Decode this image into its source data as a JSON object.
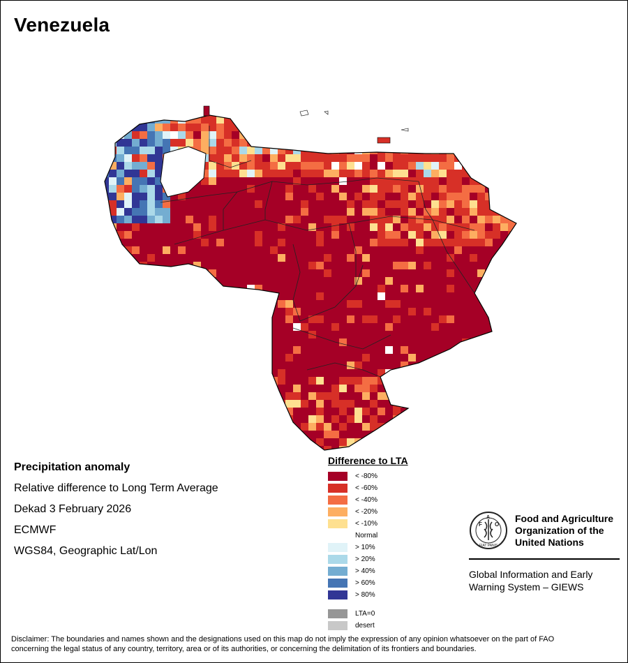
{
  "title": "Venezuela",
  "info": {
    "heading": "Precipitation anomaly",
    "line1": "Relative difference to Long Term Average",
    "line2": "Dekad 3 February 2026",
    "line3": "ECMWF",
    "line4": "WGS84, Geographic Lat/Lon"
  },
  "legend": {
    "title": "Difference to LTA",
    "items": [
      {
        "label": "< -80%",
        "color": "#a50026"
      },
      {
        "label": "< -60%",
        "color": "#d73027"
      },
      {
        "label": "< -40%",
        "color": "#f46d43"
      },
      {
        "label": "< -20%",
        "color": "#fdae61"
      },
      {
        "label": "< -10%",
        "color": "#fee090"
      },
      {
        "label": "Normal",
        "color": "#ffffff"
      },
      {
        "label": "> 10%",
        "color": "#e0f3f8"
      },
      {
        "label": "> 20%",
        "color": "#abd9e9"
      },
      {
        "label": "> 40%",
        "color": "#74add1"
      },
      {
        "label": "> 60%",
        "color": "#4575b4"
      },
      {
        "label": "> 80%",
        "color": "#313695"
      }
    ],
    "extra": [
      {
        "label": "LTA=0",
        "color": "#969696"
      },
      {
        "label": "desert",
        "color": "#c8c8c8"
      }
    ]
  },
  "logo": {
    "seal_text": "FIAT PANIS",
    "org_line1": "Food and Agriculture",
    "org_line2": "Organization of the",
    "org_line3": "United Nations",
    "giews_line1": "Global Information and Early",
    "giews_line2": "Warning System – GIEWS"
  },
  "disclaimer": {
    "line1": "Disclaimer: The boundaries and names shown and the designations used on this map do not imply the expression of any opinion whatsoever on the part of FAO",
    "line2": "concerning the legal status of any country, territory, area or of its authorities, or concerning the delimitation of its frontiers and boundaries."
  }
}
